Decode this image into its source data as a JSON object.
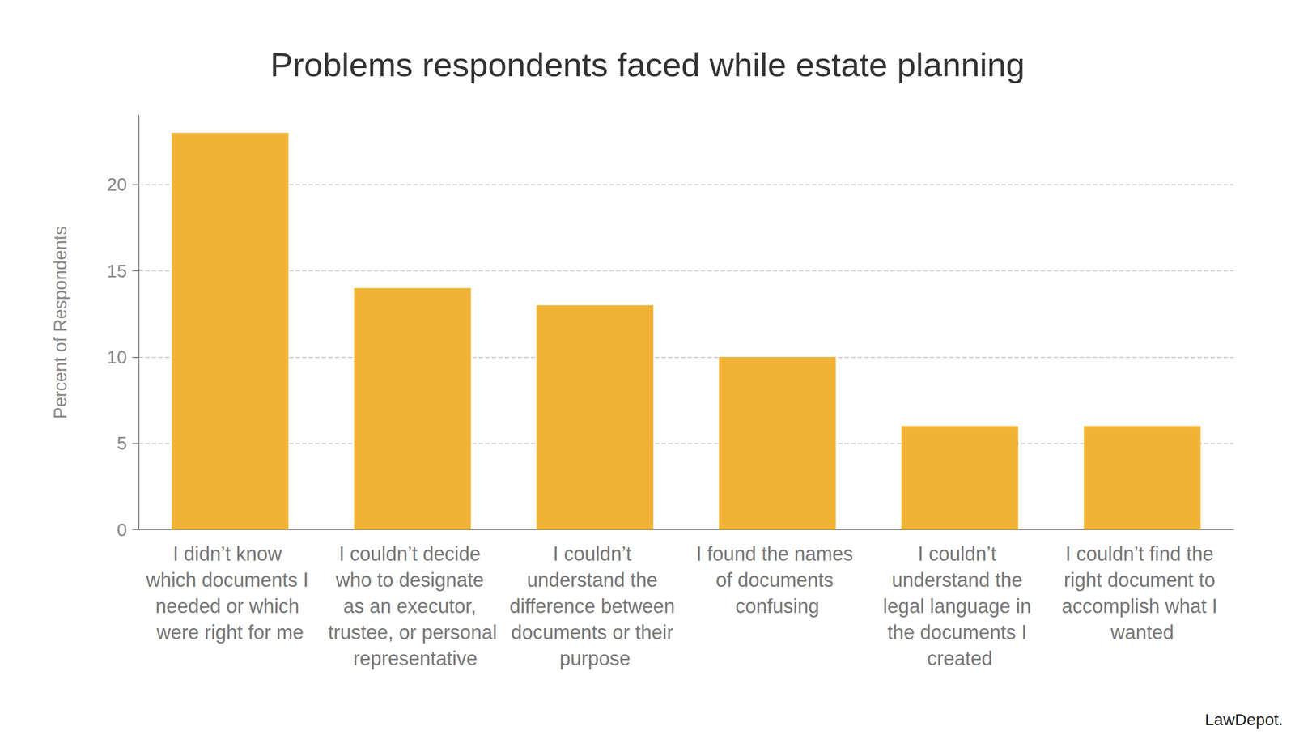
{
  "chart_data": {
    "type": "bar",
    "title": "Problems respondents faced while estate planning",
    "y_label": "Percent of Respondents",
    "categories": [
      "I didn’t know which documents I needed or which were right for me",
      "I couldn’t decide who to designate as an executor, trustee, or personal representative",
      "I couldn’t understand the difference between documents or their purpose",
      "I found the names of documents confusing",
      "I couldn’t understand the legal language in the documents I created",
      "I couldn’t find the right document to accomplish what I wanted"
    ],
    "values": [
      23,
      14,
      13,
      10,
      6,
      6
    ],
    "color": "#f0b335",
    "ylim": [
      0,
      24
    ],
    "yticks": [
      0,
      5,
      10,
      15,
      20
    ],
    "grid": true,
    "source": "LawDepot."
  }
}
